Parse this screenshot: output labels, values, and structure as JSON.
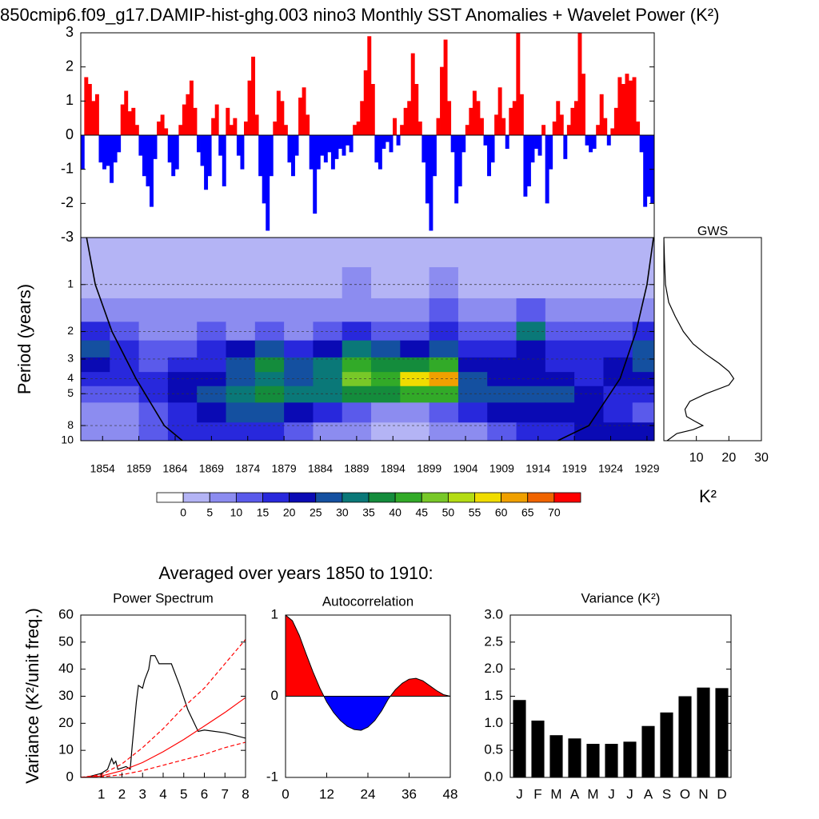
{
  "heading": "Averaged over years 1850 to 1910:",
  "chart_data": [
    {
      "type": "bar",
      "title": "850cmip6.f09_g17.DAMIP-hist-ghg.003 nino3 Monthly SST Anomalies + Wavelet Power (K²)",
      "xlim": [
        1851,
        1930
      ],
      "ylim": [
        -3,
        3
      ],
      "yticks": [
        -3,
        -2,
        -1,
        0,
        1,
        2,
        3
      ],
      "color_positive": "#ff0000",
      "color_negative": "#0000ff",
      "values": [
        -1.0,
        1.7,
        1.5,
        1.0,
        1.2,
        -0.8,
        -1.0,
        -0.9,
        -1.4,
        -0.8,
        -0.5,
        0.9,
        1.3,
        0.7,
        0.8,
        0.3,
        -0.6,
        -1.2,
        -1.5,
        -2.1,
        -0.7,
        0.4,
        0.6,
        0.2,
        -0.8,
        -1.2,
        -1.0,
        0.3,
        0.9,
        1.2,
        1.6,
        0.8,
        -0.5,
        -0.9,
        -1.6,
        -1.2,
        0.5,
        0.9,
        -0.6,
        -1.5,
        0.8,
        0.3,
        0.5,
        -0.6,
        -1.0,
        0.4,
        1.6,
        2.3,
        0.6,
        -1.2,
        -2.0,
        -2.8,
        -1.2,
        0.4,
        1.3,
        1.0,
        0.3,
        -0.8,
        -1.2,
        -0.6,
        1.1,
        1.4,
        0.6,
        -1.0,
        -2.3,
        -1.0,
        -0.6,
        -0.8,
        -0.5,
        -1.0,
        -0.7,
        -0.4,
        -0.6,
        -0.3,
        -0.5,
        0.3,
        0.4,
        1.0,
        1.9,
        2.9,
        1.5,
        -0.8,
        -1.0,
        -0.4,
        -0.2,
        -0.5,
        0.5,
        -0.3,
        0.3,
        0.8,
        1.0,
        2.4,
        1.5,
        0.4,
        -0.8,
        -2.0,
        -2.8,
        -1.2,
        0.5,
        2.0,
        2.8,
        1.0,
        -0.5,
        -2.0,
        -1.5,
        -0.5,
        0.3,
        0.8,
        1.3,
        1.0,
        0.5,
        -0.3,
        -1.2,
        -0.8,
        0.6,
        1.4,
        0.5,
        -0.4,
        0.8,
        1.0,
        3.0,
        1.2,
        -1.8,
        -1.5,
        -0.8,
        -0.4,
        -0.6,
        0.3,
        -2.0,
        -1.0,
        0.4,
        1.0,
        0.6,
        -0.7,
        0.3,
        0.8,
        1.0,
        3.0,
        1.8,
        -0.3,
        -0.5,
        -0.4,
        0.3,
        1.2,
        0.5,
        -0.3,
        0.2,
        0.8,
        1.7,
        1.5,
        1.8,
        1.6,
        1.7,
        0.4,
        -0.5,
        -2.1,
        -1.8,
        -2.0
      ]
    },
    {
      "type": "contour",
      "ylabel": "Period (years)",
      "x": [
        1853,
        1857,
        1861,
        1865,
        1869,
        1873,
        1877,
        1881,
        1885,
        1889,
        1893,
        1897,
        1901,
        1905,
        1909,
        1913,
        1917,
        1921,
        1925,
        1929
      ],
      "y": [
        0.6,
        1,
        1.5,
        2,
        2.6,
        3.3,
        4,
        5,
        6.5,
        9
      ],
      "values": [
        [
          3,
          3,
          3,
          3,
          3,
          3,
          3,
          3,
          3,
          3,
          3,
          3,
          3,
          3,
          3,
          3,
          3,
          3,
          3,
          3
        ],
        [
          4,
          4,
          3,
          3,
          3,
          3,
          3,
          3,
          3,
          6,
          3,
          4,
          6,
          3,
          3,
          4,
          3,
          3,
          3,
          4
        ],
        [
          8,
          7,
          5,
          5,
          6,
          5,
          5,
          5,
          5,
          9,
          6,
          8,
          10,
          6,
          6,
          12,
          6,
          5,
          6,
          8
        ],
        [
          15,
          10,
          8,
          6,
          10,
          8,
          12,
          8,
          10,
          15,
          12,
          12,
          15,
          10,
          10,
          30,
          12,
          10,
          12,
          15
        ],
        [
          25,
          15,
          10,
          12,
          15,
          20,
          25,
          18,
          22,
          30,
          25,
          22,
          25,
          15,
          15,
          22,
          15,
          15,
          18,
          25
        ],
        [
          20,
          18,
          12,
          15,
          18,
          28,
          35,
          25,
          30,
          42,
          35,
          38,
          40,
          22,
          20,
          20,
          18,
          18,
          22,
          28
        ],
        [
          15,
          18,
          15,
          20,
          22,
          28,
          30,
          28,
          32,
          48,
          40,
          55,
          62,
          25,
          22,
          22,
          20,
          18,
          20,
          22
        ],
        [
          10,
          12,
          18,
          22,
          25,
          30,
          35,
          30,
          30,
          35,
          35,
          40,
          42,
          28,
          25,
          28,
          25,
          20,
          18,
          15
        ],
        [
          6,
          8,
          12,
          18,
          22,
          25,
          25,
          22,
          18,
          12,
          8,
          8,
          10,
          15,
          20,
          22,
          22,
          22,
          18,
          12
        ],
        [
          8,
          8,
          10,
          15,
          18,
          18,
          15,
          10,
          8,
          5,
          4,
          4,
          5,
          8,
          10,
          15,
          18,
          20,
          20,
          20
        ]
      ],
      "xlim": [
        1851,
        1930
      ],
      "ylim": [
        0.5,
        10
      ],
      "ylog": true,
      "y_reversed": true,
      "xticks": [
        1854,
        1859,
        1864,
        1869,
        1874,
        1879,
        1884,
        1889,
        1894,
        1899,
        1904,
        1909,
        1914,
        1919,
        1924,
        1929
      ],
      "yticks": [
        1,
        2,
        3,
        4,
        5,
        8,
        10
      ],
      "grid": "dashed",
      "levels": [
        0,
        5,
        10,
        15,
        20,
        25,
        30,
        35,
        40,
        45,
        50,
        55,
        60,
        65,
        70
      ],
      "colors": [
        "#ffffff",
        "#b4b4f5",
        "#8c8cf0",
        "#5a5aeb",
        "#2828dc",
        "#0a0ab4",
        "#1450a0",
        "#0a7878",
        "#148c3c",
        "#32aa28",
        "#78c828",
        "#b4dc14",
        "#f0dc00",
        "#f0a000",
        "#f06400",
        "#ff0000"
      ],
      "coi_color": "#000000",
      "coi": [
        {
          "x": [
            1851.8,
            1853,
            1855.3,
            1858.6,
            1862.5,
            1865
          ],
          "y": [
            0.5,
            1,
            2,
            4,
            8,
            10
          ]
        },
        {
          "x": [
            1916.7,
            1921,
            1925.3,
            1927.5,
            1929,
            1929.9
          ],
          "y": [
            10,
            8,
            4,
            2,
            1,
            0.5
          ]
        }
      ]
    },
    {
      "type": "line",
      "orientation": "horizontal",
      "title": "GWS",
      "xlabel": "K²",
      "color": "#000000",
      "y": [
        0.5,
        0.7,
        1,
        1.3,
        1.6,
        2,
        2.4,
        2.8,
        3.2,
        3.6,
        4,
        4.4,
        5,
        5.6,
        6.3,
        7,
        7.5,
        8,
        8.5,
        9,
        10
      ],
      "values": [
        0,
        0.2,
        0.5,
        1.5,
        3.5,
        6,
        9,
        13,
        17,
        20,
        21.5,
        20,
        13,
        8,
        6.5,
        7,
        9.5,
        12,
        9,
        4,
        1
      ],
      "xlim": [
        0,
        30
      ],
      "xticks": [
        10,
        20,
        30
      ],
      "ylim": [
        0.5,
        10
      ],
      "ylog": true,
      "y_reversed": true
    },
    {
      "type": "line",
      "title": "Power Spectrum",
      "ylabel": "Variance (K²/unit freq.)",
      "xlim": [
        0,
        8
      ],
      "xticks": [
        1,
        2,
        3,
        4,
        5,
        6,
        7,
        8
      ],
      "ylim": [
        0,
        60
      ],
      "yticks": [
        0,
        10,
        20,
        30,
        40,
        50,
        60
      ],
      "series": [
        {
          "color": "#000000",
          "x": [
            0.2,
            0.5,
            1,
            1.3,
            1.5,
            1.6,
            1.7,
            1.8,
            2,
            2.2,
            2.4,
            2.5,
            2.7,
            2.8,
            3,
            3.1,
            3.3,
            3.4,
            3.6,
            3.8,
            4.4,
            4.8,
            5.2,
            5.7,
            6,
            7,
            8
          ],
          "values": [
            0,
            0.5,
            1.5,
            3,
            7,
            5,
            6,
            3,
            3.5,
            4,
            3,
            12,
            28,
            34,
            33,
            36,
            40,
            45,
            45,
            42,
            42,
            34,
            25,
            17,
            17.5,
            16.5,
            14.5
          ]
        },
        {
          "color": "#ff0000",
          "x": [
            0,
            1,
            2,
            3,
            4,
            5,
            6,
            7,
            8
          ],
          "values": [
            0,
            0.5,
            2.5,
            5.5,
            9.5,
            14,
            19,
            24,
            29.5
          ]
        },
        {
          "color": "#ff0000",
          "dashed": true,
          "x": [
            0,
            1,
            2,
            3,
            4,
            5,
            6,
            7,
            8
          ],
          "values": [
            0,
            1,
            5,
            11,
            18,
            26,
            33,
            42,
            51
          ]
        },
        {
          "color": "#ff0000",
          "dashed": true,
          "x": [
            0,
            1,
            2,
            3,
            4,
            5,
            6,
            7,
            8
          ],
          "values": [
            0,
            0.2,
            1,
            2.5,
            4.5,
            6.5,
            8.5,
            11,
            13
          ]
        }
      ]
    },
    {
      "type": "area",
      "title": "Autocorrelation",
      "xlim": [
        0,
        48
      ],
      "xticks": [
        0,
        12,
        24,
        36,
        48
      ],
      "ylim": [
        -1,
        1
      ],
      "yticks": [
        -1,
        0,
        1
      ],
      "color_positive": "#ff0000",
      "color_negative": "#0000ff",
      "x": [
        0,
        2,
        4,
        6,
        8,
        10,
        12,
        14,
        16,
        18,
        20,
        22,
        24,
        26,
        28,
        30,
        32,
        34,
        36,
        38,
        40,
        42,
        44,
        46,
        48
      ],
      "values": [
        1,
        0.93,
        0.75,
        0.52,
        0.3,
        0.1,
        -0.07,
        -0.2,
        -0.3,
        -0.37,
        -0.41,
        -0.42,
        -0.38,
        -0.3,
        -0.18,
        -0.03,
        0.08,
        0.16,
        0.21,
        0.22,
        0.19,
        0.13,
        0.07,
        0.02,
        0
      ]
    },
    {
      "type": "bar",
      "title": "Variance (K²)",
      "color": "#000000",
      "categories": [
        "J",
        "F",
        "M",
        "A",
        "M",
        "J",
        "J",
        "A",
        "S",
        "O",
        "N",
        "D"
      ],
      "values": [
        1.43,
        1.05,
        0.78,
        0.72,
        0.62,
        0.62,
        0.66,
        0.95,
        1.2,
        1.5,
        1.66,
        1.65
      ],
      "ylim": [
        0,
        3
      ],
      "yticks": [
        {
          "value": 0,
          "label": "0.0"
        },
        0.5,
        {
          "value": 1,
          "label": "1.0"
        },
        1.5,
        {
          "value": 2,
          "label": "2.0"
        },
        2.5,
        {
          "value": 3,
          "label": "3.0"
        }
      ]
    }
  ]
}
